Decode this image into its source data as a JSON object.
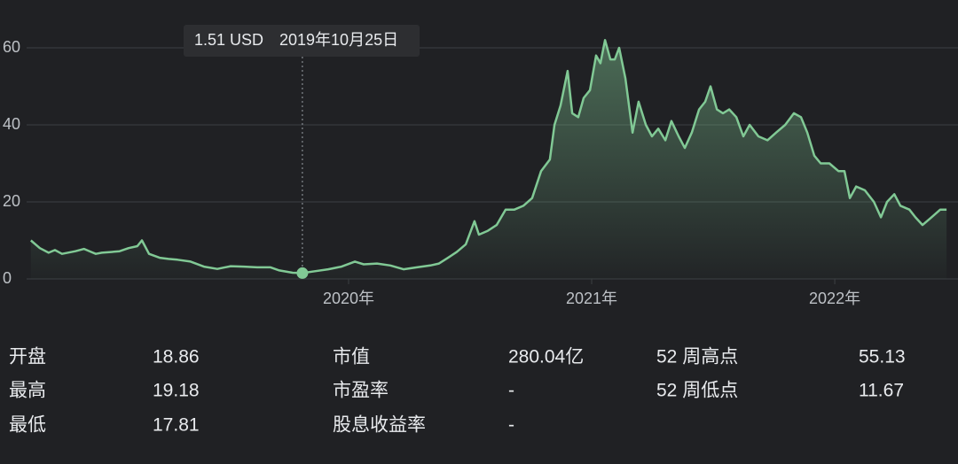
{
  "chart_data": {
    "type": "line",
    "color": "#81c995",
    "grid": true,
    "xlim": [
      2018.566,
      2022.507
    ],
    "xticks": [
      {
        "value": 2020,
        "label": "2020年"
      },
      {
        "value": 2021,
        "label": "2021年"
      },
      {
        "value": 2022,
        "label": "2022年"
      }
    ],
    "ylim": [
      0,
      60
    ],
    "yticks": [
      0,
      20,
      40,
      60
    ],
    "tooltip": {
      "x": 2019.81,
      "value": 1.51,
      "label": "1.51 USD",
      "date": "2019年10月25日"
    },
    "x": [
      2018.693,
      2018.73,
      2018.766,
      2018.792,
      2018.821,
      2018.876,
      2018.912,
      2018.942,
      2018.96,
      2018.985,
      2019.022,
      2019.058,
      2019.095,
      2019.131,
      2019.15,
      2019.179,
      2019.223,
      2019.259,
      2019.296,
      2019.35,
      2019.405,
      2019.46,
      2019.515,
      2019.569,
      2019.624,
      2019.679,
      2019.715,
      2019.77,
      2019.81,
      2019.861,
      2019.916,
      2019.971,
      2020.026,
      2020.062,
      2020.117,
      2020.172,
      2020.226,
      2020.281,
      2020.336,
      2020.372,
      2020.409,
      2020.445,
      2020.482,
      2020.518,
      2020.536,
      2020.573,
      2020.609,
      2020.646,
      2020.682,
      2020.719,
      2020.755,
      2020.792,
      2020.828,
      2020.847,
      2020.872,
      2020.901,
      2020.92,
      2020.945,
      2020.967,
      2020.993,
      2021.018,
      2021.036,
      2021.055,
      2021.077,
      2021.095,
      2021.113,
      2021.139,
      2021.168,
      2021.193,
      2021.223,
      2021.248,
      2021.274,
      2021.303,
      2021.328,
      2021.358,
      2021.383,
      2021.412,
      2021.442,
      2021.467,
      2021.489,
      2021.515,
      2021.54,
      2021.566,
      2021.595,
      2021.624,
      2021.65,
      2021.686,
      2021.723,
      2021.759,
      2021.796,
      2021.832,
      2021.861,
      2021.887,
      2021.916,
      2021.942,
      2021.978,
      2022.015,
      2022.04,
      2022.062,
      2022.088,
      2022.124,
      2022.161,
      2022.19,
      2022.215,
      2022.245,
      2022.27,
      2022.307,
      2022.332,
      2022.361,
      2022.398,
      2022.434,
      2022.46
    ],
    "values": [
      10,
      8,
      6.8,
      7.5,
      6.5,
      7.2,
      7.8,
      7,
      6.5,
      6.8,
      7,
      7.2,
      8,
      8.5,
      10,
      6.5,
      5.5,
      5.2,
      5,
      4.5,
      3.2,
      2.6,
      3.3,
      3.2,
      3,
      3,
      2.2,
      1.6,
      1.51,
      2,
      2.5,
      3.2,
      4.5,
      3.8,
      4,
      3.5,
      2.5,
      3,
      3.5,
      4,
      5.5,
      7,
      9,
      15,
      11.5,
      12.5,
      14,
      18,
      18,
      19,
      21,
      28,
      31,
      40,
      45,
      54,
      43,
      42,
      47,
      49,
      58,
      56,
      62,
      57,
      57,
      60,
      52,
      38,
      46,
      40,
      37,
      39,
      36,
      41,
      37,
      34,
      38,
      44,
      46,
      50,
      44,
      43,
      44,
      42,
      37,
      40,
      37,
      36,
      38,
      40,
      43,
      42,
      38,
      32,
      30,
      30,
      28,
      28,
      21,
      24,
      23,
      20,
      16,
      20,
      22,
      19,
      18,
      16,
      14,
      16,
      18,
      18
    ]
  },
  "stats": [
    [
      {
        "label": "开盘",
        "value": "18.86"
      },
      {
        "label": "最高",
        "value": "19.18"
      },
      {
        "label": "最低",
        "value": "17.81"
      }
    ],
    [
      {
        "label": "市值",
        "value": "280.04亿"
      },
      {
        "label": "市盈率",
        "value": "-"
      },
      {
        "label": "股息收益率",
        "value": "-"
      }
    ],
    [
      {
        "label": "52 周高点",
        "value": "55.13"
      },
      {
        "label": "52 周低点",
        "value": "11.67"
      }
    ]
  ]
}
